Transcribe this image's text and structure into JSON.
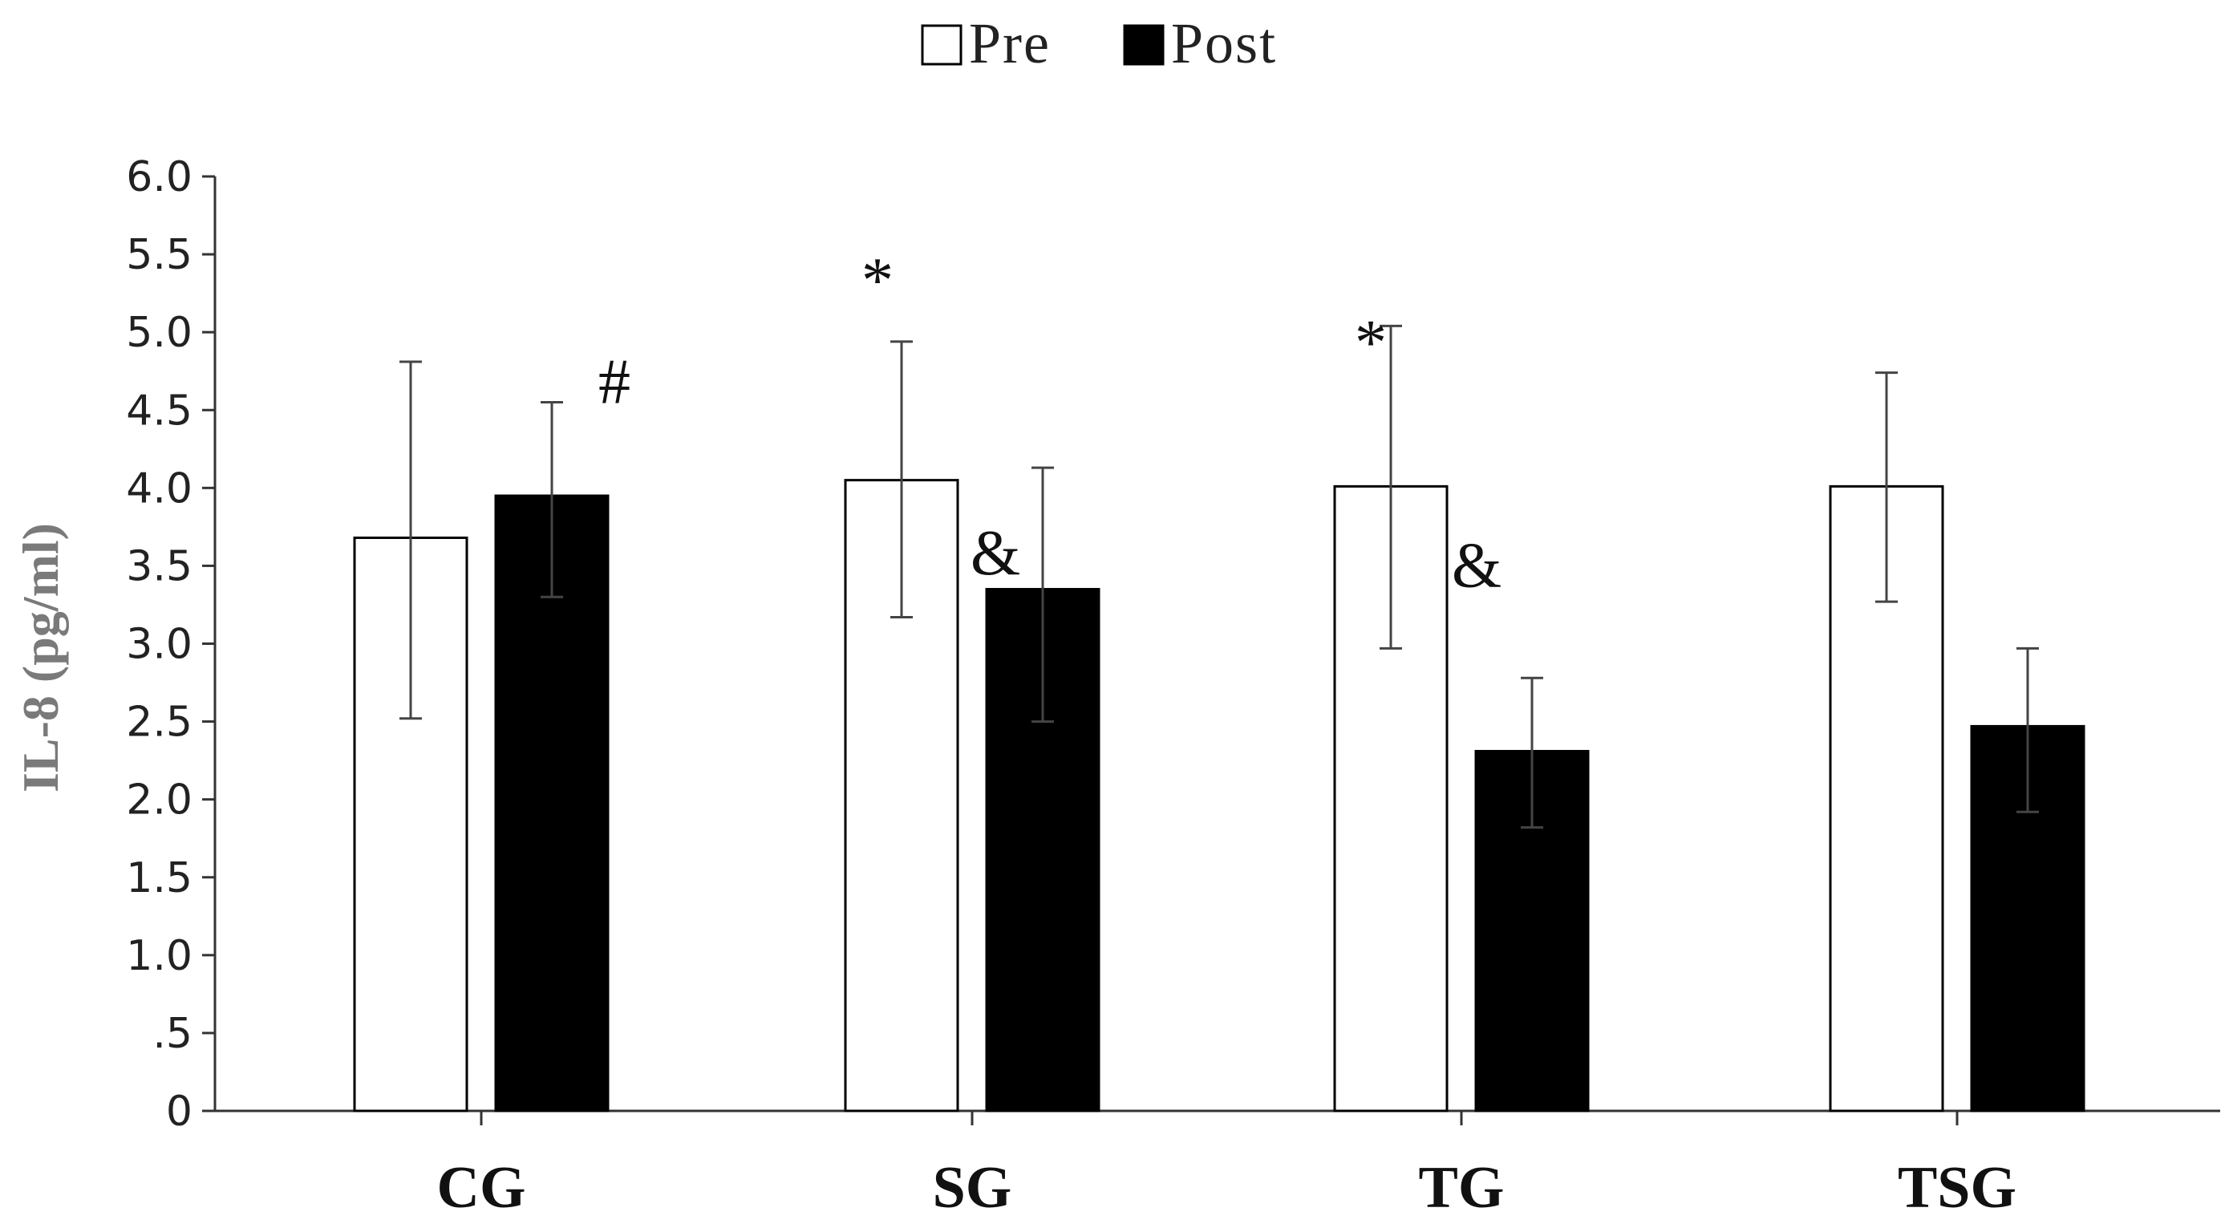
{
  "chart_data": {
    "type": "bar",
    "title": "",
    "xlabel": "",
    "ylabel": "IL-8 (pg/ml)",
    "ylim": [
      0,
      6.0
    ],
    "yticks": [
      0,
      0.5,
      1.0,
      1.5,
      2.0,
      2.5,
      3.0,
      3.5,
      4.0,
      4.5,
      5.0,
      5.5,
      6.0
    ],
    "ytick_labels": [
      "0",
      ".5",
      "1.0",
      "1.5",
      "2.0",
      "2.5",
      "3.0",
      "3.5",
      "4.0",
      "4.5",
      "5.0",
      "5.5",
      "6.0"
    ],
    "categories": [
      "CG",
      "SG",
      "TG",
      "TSG"
    ],
    "legend_position": "top-center",
    "grid": false,
    "series": [
      {
        "name": "Pre",
        "fill": "#ffffff",
        "values": [
          3.68,
          4.05,
          4.01,
          4.01
        ],
        "err_low": [
          2.52,
          3.17,
          2.97,
          3.27
        ],
        "err_high": [
          4.81,
          4.94,
          5.04,
          4.74
        ],
        "annotations": [
          "",
          "*",
          "*",
          ""
        ]
      },
      {
        "name": "Post",
        "fill": "#000000",
        "values": [
          3.95,
          3.35,
          2.31,
          2.47
        ],
        "err_low": [
          3.3,
          2.5,
          1.82,
          1.92
        ],
        "err_high": [
          4.55,
          4.13,
          2.78,
          2.97
        ],
        "annotations": [
          "#",
          "&",
          "&",
          ""
        ]
      }
    ]
  }
}
